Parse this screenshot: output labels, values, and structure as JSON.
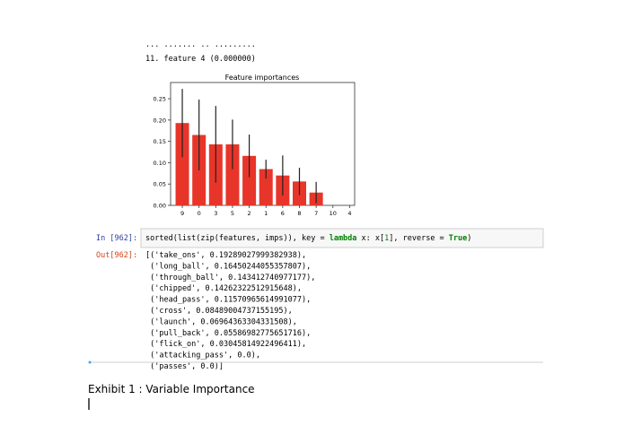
{
  "header_text": "11. feature 4 (0.000000)",
  "chart_data": {
    "type": "bar",
    "title": "Feature importances",
    "categories": [
      "9",
      "0",
      "3",
      "5",
      "2",
      "1",
      "6",
      "8",
      "7",
      "10",
      "4"
    ],
    "values": [
      0.193,
      0.165,
      0.143,
      0.143,
      0.116,
      0.085,
      0.07,
      0.056,
      0.03,
      0,
      0
    ],
    "errors": [
      0.08,
      0.083,
      0.09,
      0.058,
      0.05,
      0.022,
      0.047,
      0.032,
      0.025,
      0,
      0
    ],
    "color": "#e8352a",
    "error_color": "#222222",
    "ylim": [
      0,
      0.288
    ],
    "yticks": [
      {
        "value": 0,
        "label": "0.00"
      },
      {
        "value": 0.05,
        "label": "0.05"
      },
      {
        "value": 0.1,
        "label": "0.10"
      },
      {
        "value": 0.15,
        "label": "0.15"
      },
      {
        "value": 0.2,
        "label": "0.20"
      },
      {
        "value": 0.25,
        "label": "0.25"
      }
    ]
  },
  "cell": {
    "in_prompt": "In [962]:",
    "code": [
      "sorted(list(zip(features, imps)), key = ",
      "lambda",
      " x: x[",
      "1",
      "], reverse = ",
      "True",
      ")"
    ],
    "out_prompt": "Out[962]:",
    "output": [
      "[('take_ons', 0.19289027999382938),",
      " ('long_ball', 0.16450244055357807),",
      " ('through_ball', 0.143412740977177),",
      " ('chipped', 0.14262322512915648),",
      " ('head_pass', 0.11570965614991077),",
      " ('cross', 0.08489004737155195),",
      " ('launch', 0.06964363304331508),",
      " ('pull_back', 0.05586982775651716),",
      " ('flick_on', 0.03045814922496411),",
      " ('attacking_pass', 0.0),",
      " ('passes', 0.0)]"
    ]
  },
  "caption": "Exhibit 1 : Variable Importance"
}
